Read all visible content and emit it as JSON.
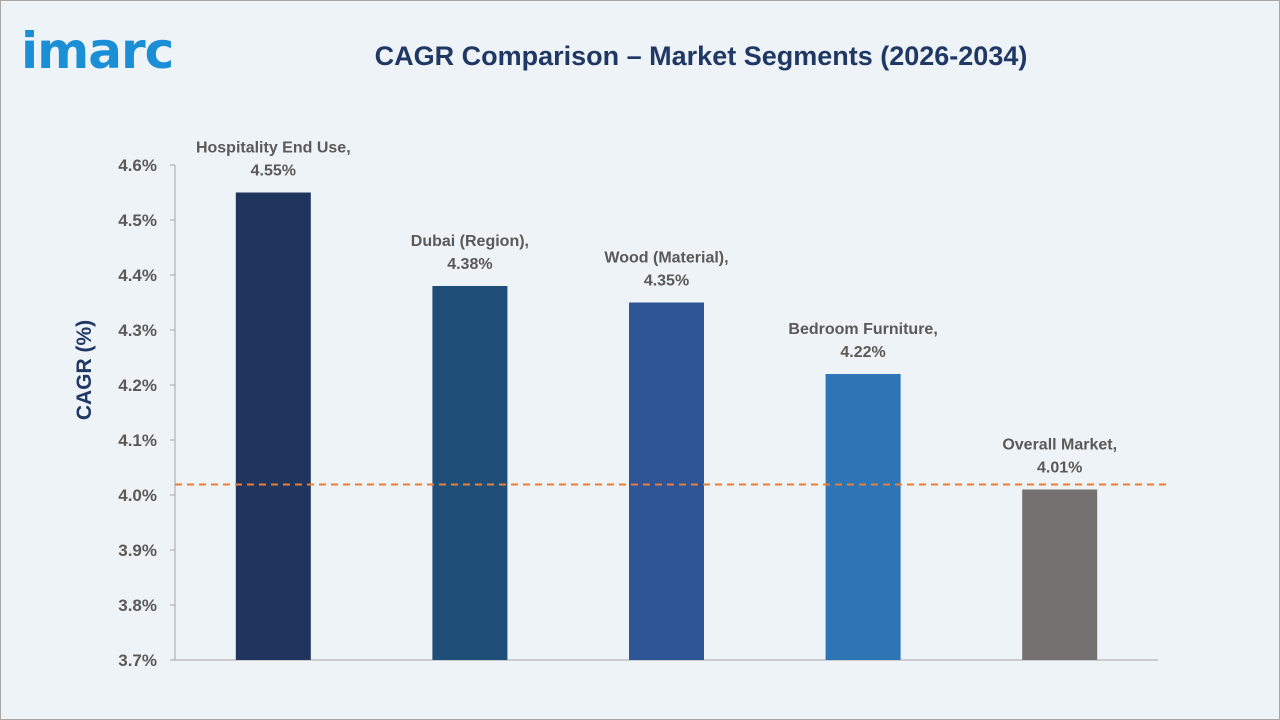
{
  "logo": {
    "text": "imarc",
    "color": "#1a8fd6"
  },
  "chart_data": {
    "type": "bar",
    "title": "CAGR Comparison – Market Segments (2026-2034)",
    "ylabel": "CAGR (%)",
    "xlabel": "",
    "ylim": [
      3.7,
      4.6
    ],
    "yticks": [
      "3.7%",
      "3.8%",
      "3.9%",
      "4.0%",
      "4.1%",
      "4.2%",
      "4.3%",
      "4.4%",
      "4.5%",
      "4.6%"
    ],
    "ytick_values": [
      3.7,
      3.8,
      3.9,
      4.0,
      4.1,
      4.2,
      4.3,
      4.4,
      4.5,
      4.6
    ],
    "grid": false,
    "categories": [
      "Hospitality End Use",
      "Dubai (Region)",
      "Wood (Material)",
      "Bedroom Furniture",
      "Overall Market"
    ],
    "values": [
      4.55,
      4.38,
      4.35,
      4.22,
      4.01
    ],
    "data_labels": [
      [
        "Hospitality End Use,",
        "4.55%"
      ],
      [
        "Dubai (Region),",
        "4.38%"
      ],
      [
        "Wood (Material),",
        "4.35%"
      ],
      [
        "Bedroom Furniture,",
        "4.22%"
      ],
      [
        "Overall Market,",
        "4.01%"
      ]
    ],
    "colors": [
      "#1f355e",
      "#1f4e79",
      "#2f5597",
      "#2e75b6",
      "#767171"
    ],
    "reference_line": {
      "value": 4.01,
      "color": "#ed7d31",
      "style": "dashed"
    }
  }
}
